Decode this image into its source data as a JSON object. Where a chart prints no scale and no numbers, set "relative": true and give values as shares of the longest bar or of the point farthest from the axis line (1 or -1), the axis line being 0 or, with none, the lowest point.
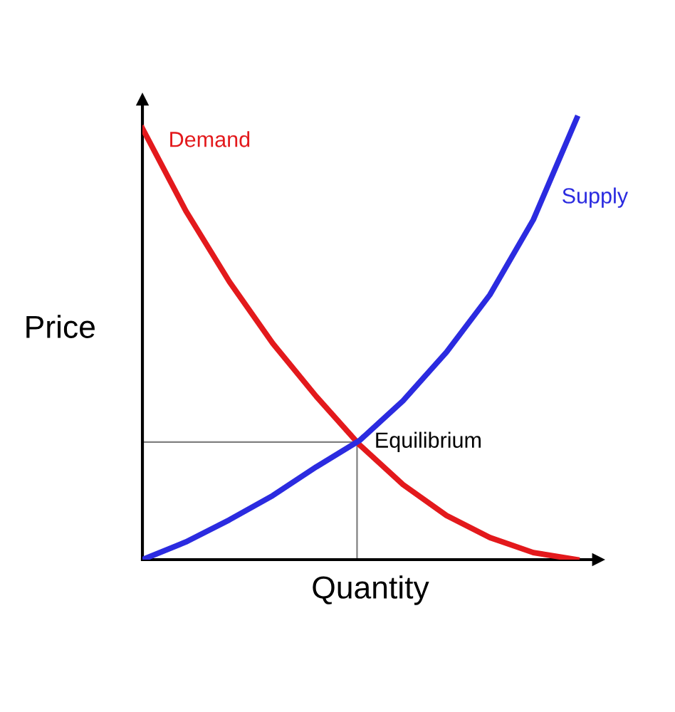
{
  "chart_data": {
    "type": "line",
    "relative": true,
    "xlabel": "Quantity",
    "ylabel": "Price",
    "categories": [
      null,
      null,
      null,
      null,
      null,
      null,
      null,
      null,
      null,
      null,
      null
    ],
    "series": [
      {
        "name": "Demand",
        "color": "#e3191c",
        "values": [
          0.977,
          0.79,
          0.63,
          0.49,
          0.37,
          0.26,
          0.17,
          0.1,
          0.05,
          0.016,
          0
        ]
      },
      {
        "name": "Supply",
        "color": "#2b2be0",
        "values": [
          0,
          0.04,
          0.09,
          0.145,
          0.21,
          0.27,
          0.36,
          0.47,
          0.6,
          0.77,
          1
        ]
      }
    ],
    "annotations": [
      "Equilibrium"
    ],
    "marker": "none",
    "line_style": "solid"
  }
}
